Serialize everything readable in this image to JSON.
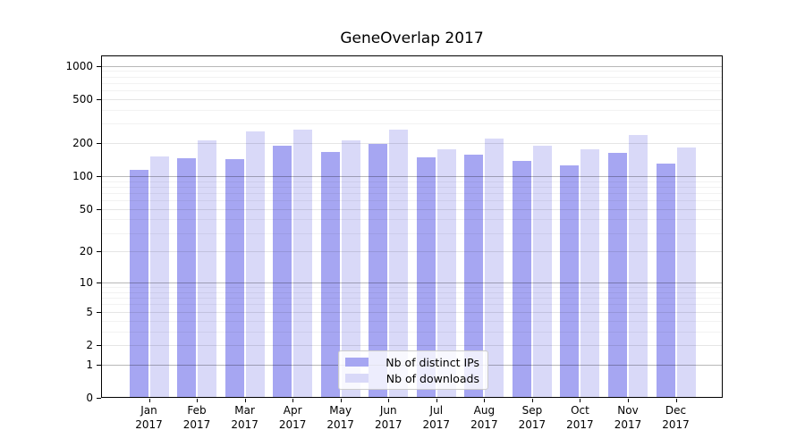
{
  "chart_data": {
    "type": "bar",
    "title": "GeneOverlap 2017",
    "xlabel": "",
    "ylabel": "",
    "categories": [
      "Jan",
      "Feb",
      "Mar",
      "Apr",
      "May",
      "Jun",
      "Jul",
      "Aug",
      "Sep",
      "Oct",
      "Nov",
      "Dec"
    ],
    "x_year_label": "2017",
    "series": [
      {
        "name": "Nb of distinct IPs",
        "color": "#a6a6f2",
        "values": [
          115,
          145,
          143,
          190,
          166,
          196,
          147,
          157,
          138,
          125,
          164,
          129
        ]
      },
      {
        "name": "Nb of downloads",
        "color": "#d9d9f8",
        "values": [
          150,
          211,
          257,
          265,
          210,
          265,
          177,
          221,
          190,
          176,
          237,
          181
        ]
      }
    ],
    "yscale": "symlog",
    "yticks": [
      1000,
      500,
      200,
      100,
      50,
      20,
      10,
      5,
      2,
      1,
      0
    ],
    "ylim": [
      0,
      1230
    ],
    "grid": true,
    "legend_position": "lower center"
  }
}
